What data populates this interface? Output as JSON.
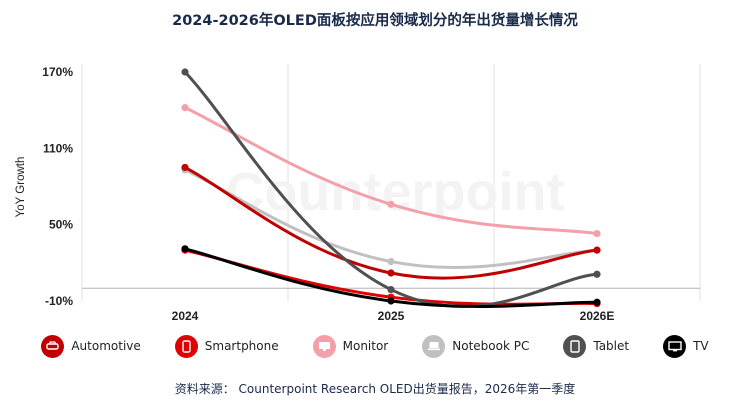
{
  "title": "2024-2026年OLED面板按应用领域划分的年出货量增长情况",
  "watermark": "Counterpoint",
  "source": "资料来源： Counterpoint Research OLED出货量报告，2026年第一季度",
  "chart_data": {
    "type": "line",
    "title": "2024-2026年OLED面板按应用领域划分的年出货量增长情况",
    "xlabel": "",
    "ylabel": "YoY Growth",
    "categories": [
      "2024",
      "2025",
      "2026E"
    ],
    "yticks": [
      "170%",
      "110%",
      "50%",
      "-10%"
    ],
    "ytick_values": [
      170,
      110,
      50,
      -10
    ],
    "ylim": [
      -10,
      170
    ],
    "grid": "vertical",
    "legend_position": "bottom",
    "series": [
      {
        "name": "Automotive",
        "color": "#c00000",
        "icon": "car-icon",
        "values": [
          95,
          12,
          30
        ]
      },
      {
        "name": "Smartphone",
        "color": "#e00000",
        "icon": "phone-icon",
        "values": [
          30,
          -7,
          -12
        ]
      },
      {
        "name": "Monitor",
        "color": "#f4a0a8",
        "icon": "monitor-icon",
        "values": [
          142,
          66,
          43
        ]
      },
      {
        "name": "Notebook PC",
        "color": "#c0c0c0",
        "icon": "laptop-icon",
        "values": [
          93,
          21,
          30
        ]
      },
      {
        "name": "Tablet",
        "color": "#505050",
        "icon": "tablet-icon",
        "values": [
          170,
          -1,
          11
        ]
      },
      {
        "name": "TV",
        "color": "#000000",
        "icon": "tv-icon",
        "values": [
          31,
          -10,
          -11
        ]
      }
    ]
  }
}
